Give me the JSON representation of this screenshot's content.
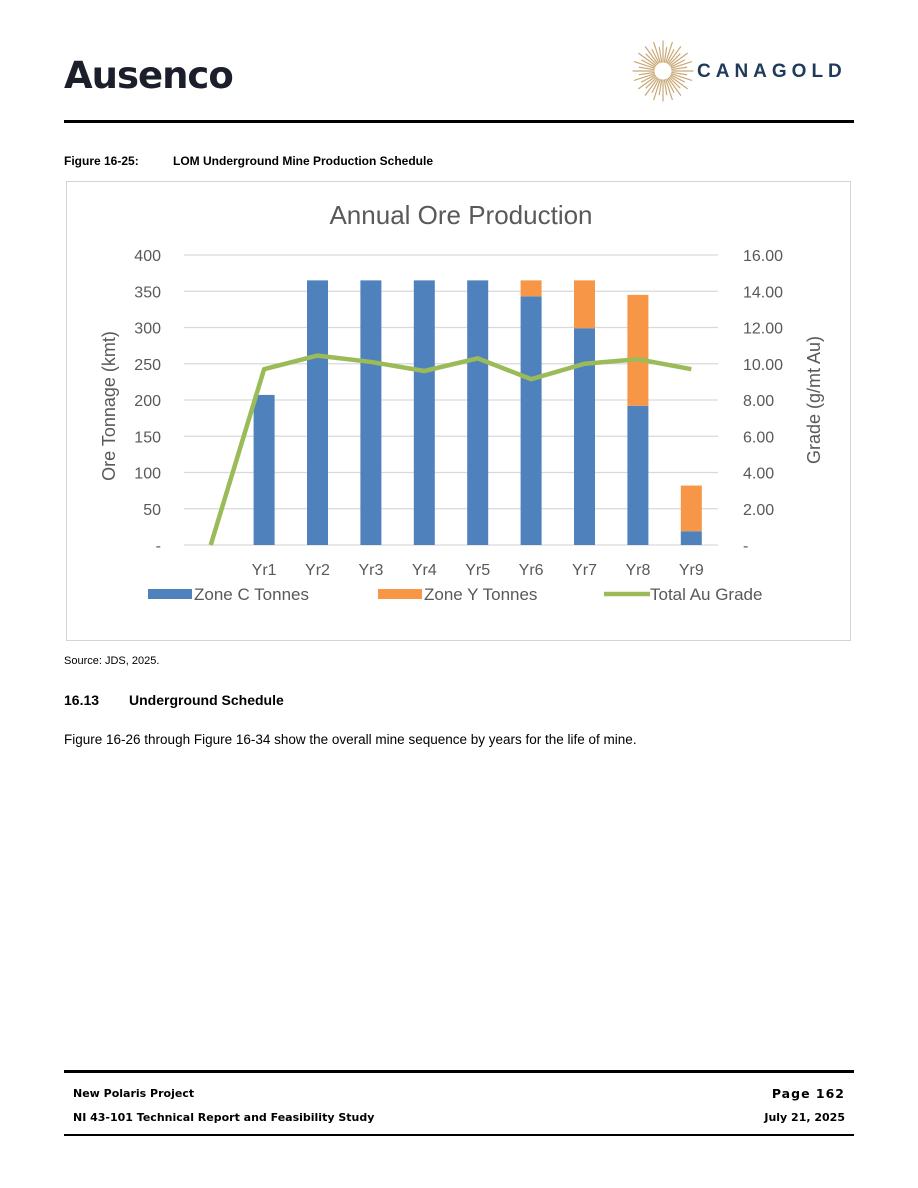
{
  "header": {
    "logo_left": "Ausenco",
    "logo_right": "CANAGOLD"
  },
  "figure": {
    "label": "Figure 16-25:",
    "title": "LOM Underground Mine Production Schedule",
    "source": "Source: JDS, 2025."
  },
  "section": {
    "number": "16.13",
    "title": "Underground Schedule",
    "paragraph": "Figure 16-26 through Figure 16-34 show the overall mine sequence by years for the life of mine."
  },
  "footer": {
    "project": "New Polaris Project",
    "report": "NI 43-101 Technical Report and Feasibility Study",
    "page": "Page 162",
    "date": "July 21, 2025"
  },
  "chart_data": {
    "type": "bar",
    "title": "Annual Ore Production",
    "ylabel": "Ore Tonnage (kmt)",
    "y2label": "Grade (g/mt Au)",
    "categories": [
      "",
      "Yr1",
      "Yr2",
      "Yr3",
      "Yr4",
      "Yr5",
      "Yr6",
      "Yr7",
      "Yr8",
      "Yr9"
    ],
    "ylim": [
      0,
      400
    ],
    "y2lim": [
      0,
      16
    ],
    "yticks": [
      "-",
      "50",
      "100",
      "150",
      "200",
      "250",
      "300",
      "350",
      "400"
    ],
    "y2ticks": [
      "-",
      "2.00",
      "4.00",
      "6.00",
      "8.00",
      "10.00",
      "12.00",
      "14.00",
      "16.00"
    ],
    "stacked": true,
    "grid": true,
    "legend_position": "bottom",
    "series": [
      {
        "name": "Zone C Tonnes",
        "kind": "bar",
        "color": "#4f81bd",
        "values": [
          0,
          207,
          365,
          365,
          365,
          365,
          343,
          299,
          192,
          19
        ]
      },
      {
        "name": "Zone Y Tonnes",
        "kind": "bar",
        "color": "#f79646",
        "values": [
          0,
          0,
          0,
          0,
          0,
          0,
          22,
          66,
          153,
          63
        ]
      },
      {
        "name": "Total Au Grade",
        "kind": "line",
        "axis": "right",
        "color": "#9bbb59",
        "values": [
          0,
          9.7,
          10.45,
          10.1,
          9.6,
          10.3,
          9.15,
          10.0,
          10.25,
          9.7
        ]
      }
    ]
  }
}
